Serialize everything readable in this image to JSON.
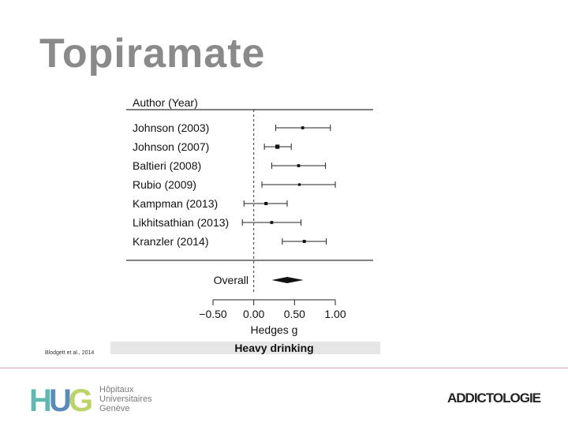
{
  "slide": {
    "title": "Topiramate",
    "citation": "Blodgett et al., 2014"
  },
  "logos": {
    "hug_mark": "HUG",
    "hug_lines": [
      "Hôpitaux",
      "Universitaires",
      "Genève"
    ],
    "addictologie": "ADDICTOLOGIE"
  },
  "colors": {
    "title": "#8a8a8a",
    "hug_teal": "#5fb8b2",
    "hug_blue": "#4a7fb5",
    "hug_green": "#b5cf5a",
    "footer_line": "#d9a3c6"
  },
  "chart_data": {
    "type": "forest",
    "column_header": "Author (Year)",
    "xlabel": "Hedges g",
    "caption": "Heavy drinking",
    "xlim": [
      -0.5,
      1.0
    ],
    "xticks": [
      -0.5,
      0.0,
      0.5,
      1.0
    ],
    "xtick_labels": [
      "−0.50",
      "0.00",
      "0.50",
      "1.00"
    ],
    "reference_line": 0.0,
    "studies": [
      {
        "label": "Johnson (2003)",
        "estimate": 0.6,
        "lower": 0.27,
        "upper": 0.94,
        "weight": 1
      },
      {
        "label": "Johnson (2007)",
        "estimate": 0.29,
        "lower": 0.13,
        "upper": 0.46,
        "weight": 3
      },
      {
        "label": "Baltieri (2008)",
        "estimate": 0.55,
        "lower": 0.22,
        "upper": 0.88,
        "weight": 1
      },
      {
        "label": "Rubio (2009)",
        "estimate": 0.56,
        "lower": 0.1,
        "upper": 1.0,
        "weight": 0.6
      },
      {
        "label": "Kampman (2013)",
        "estimate": 0.15,
        "lower": -0.12,
        "upper": 0.41,
        "weight": 1.4
      },
      {
        "label": "Likhitsathian (2013)",
        "estimate": 0.22,
        "lower": -0.14,
        "upper": 0.58,
        "weight": 1
      },
      {
        "label": "Kranzler (2014)",
        "estimate": 0.62,
        "lower": 0.35,
        "upper": 0.89,
        "weight": 1.2
      }
    ],
    "overall": {
      "label": "Overall",
      "estimate": 0.41,
      "lower": 0.22,
      "upper": 0.61
    }
  }
}
